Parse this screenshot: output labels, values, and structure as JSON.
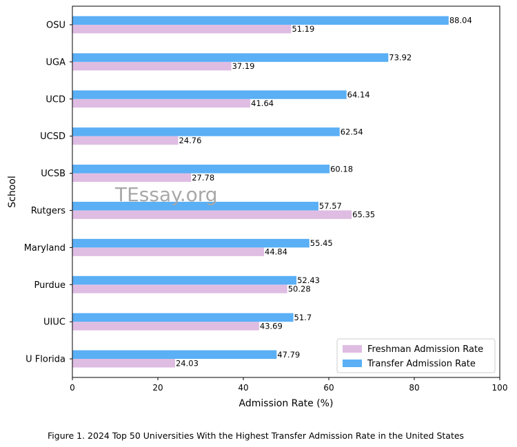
{
  "chart_data": {
    "type": "bar",
    "orientation": "horizontal",
    "categories": [
      "U Florida",
      "UIUC",
      "Purdue",
      "Maryland",
      "Rutgers",
      "UCSB",
      "UCSD",
      "UCD",
      "UGA",
      "OSU"
    ],
    "series": [
      {
        "name": "Freshman Admission Rate",
        "color": "#dfbde3",
        "values": [
          24.03,
          43.69,
          50.28,
          44.84,
          65.35,
          27.78,
          24.76,
          41.64,
          37.19,
          51.19
        ]
      },
      {
        "name": "Transfer Admission Rate",
        "color": "#5aaff5",
        "values": [
          47.79,
          51.7,
          52.43,
          55.45,
          57.57,
          60.18,
          62.54,
          64.14,
          73.92,
          88.04
        ]
      }
    ],
    "xlabel": "Admission Rate (%)",
    "ylabel": "School",
    "xlim": [
      0,
      100
    ],
    "xticks": [
      0,
      20,
      40,
      60,
      80,
      100
    ],
    "grid": false,
    "legend_position": "lower-right"
  },
  "caption": "Figure 1. 2024 Top 50 Universities With the Highest Transfer Admission Rate in the United States",
  "watermark": "TEssay.org"
}
